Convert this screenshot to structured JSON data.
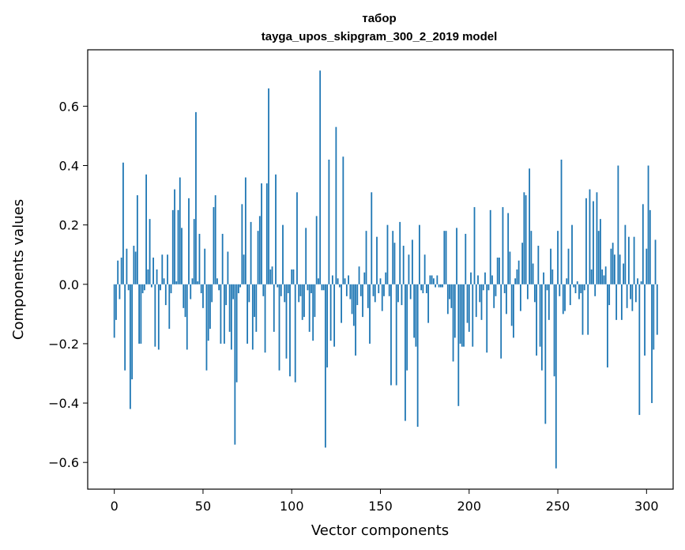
{
  "chart_data": {
    "type": "bar",
    "title_line1": "табор",
    "title_line2": "tayga_upos_skipgram_300_2_2019 model",
    "xlabel": "Vector components",
    "ylabel": "Components values",
    "xlim": [
      -15,
      315
    ],
    "ylim": [
      -0.69,
      0.79
    ],
    "xticks": [
      0,
      50,
      100,
      150,
      200,
      250,
      300
    ],
    "yticks": [
      -0.6,
      -0.4,
      -0.2,
      0.0,
      0.2,
      0.4,
      0.6
    ],
    "ytick_labels": [
      "−0.6",
      "−0.4",
      "−0.2",
      "0.0",
      "0.2",
      "0.4",
      "0.6"
    ],
    "bar_color": "#1f77b4",
    "values": [
      -0.18,
      -0.12,
      0.08,
      -0.05,
      0.09,
      0.41,
      -0.29,
      0.12,
      -0.02,
      -0.42,
      -0.32,
      0.13,
      0.11,
      0.3,
      -0.2,
      -0.2,
      -0.03,
      -0.02,
      0.37,
      0.05,
      0.22,
      -0.01,
      0.09,
      -0.21,
      0.05,
      -0.22,
      -0.02,
      0.1,
      0.02,
      -0.07,
      0.1,
      -0.15,
      -0.03,
      0.25,
      0.32,
      0.01,
      0.25,
      0.36,
      0.19,
      -0.08,
      -0.11,
      -0.22,
      0.29,
      -0.05,
      0.02,
      0.22,
      0.58,
      0.01,
      0.17,
      -0.03,
      -0.08,
      0.12,
      -0.29,
      -0.19,
      -0.15,
      -0.06,
      0.26,
      0.3,
      0.02,
      -0.02,
      -0.2,
      0.17,
      -0.2,
      -0.07,
      0.11,
      -0.16,
      -0.22,
      -0.05,
      -0.54,
      -0.33,
      -0.03,
      -0.01,
      0.27,
      0.1,
      0.36,
      -0.2,
      -0.06,
      0.21,
      -0.22,
      -0.11,
      -0.16,
      0.18,
      0.23,
      0.34,
      -0.04,
      -0.23,
      0.34,
      0.66,
      0.05,
      0.06,
      -0.16,
      0.37,
      -0.01,
      -0.29,
      -0.04,
      0.2,
      -0.06,
      -0.25,
      -0.03,
      -0.31,
      0.05,
      0.05,
      -0.33,
      0.31,
      -0.06,
      -0.04,
      -0.12,
      -0.11,
      0.19,
      -0.02,
      -0.16,
      -0.03,
      -0.19,
      -0.11,
      0.23,
      0.02,
      0.72,
      -0.02,
      -0.02,
      -0.55,
      -0.28,
      0.42,
      -0.19,
      0.03,
      -0.21,
      0.53,
      0.02,
      -0.01,
      -0.13,
      0.43,
      0.02,
      -0.04,
      0.03,
      -0.05,
      -0.1,
      -0.14,
      -0.24,
      -0.07,
      0.06,
      -0.04,
      -0.11,
      0.04,
      0.18,
      -0.08,
      -0.2,
      0.31,
      -0.04,
      -0.06,
      0.16,
      -0.03,
      0.02,
      -0.09,
      -0.04,
      0.04,
      0.2,
      -0.04,
      -0.34,
      0.18,
      0.14,
      -0.34,
      -0.06,
      0.21,
      -0.07,
      0.13,
      -0.46,
      -0.29,
      0.1,
      -0.05,
      0.15,
      -0.18,
      -0.21,
      -0.48,
      0.2,
      -0.02,
      -0.03,
      0.1,
      -0.03,
      -0.13,
      0.03,
      0.03,
      0.02,
      -0.01,
      0.03,
      -0.01,
      -0.01,
      -0.01,
      0.18,
      0.18,
      -0.1,
      -0.05,
      -0.08,
      -0.26,
      -0.18,
      0.19,
      -0.41,
      -0.2,
      -0.21,
      -0.21,
      0.17,
      -0.13,
      -0.16,
      0.04,
      -0.21,
      0.26,
      -0.11,
      0.03,
      -0.06,
      -0.12,
      -0.02,
      0.04,
      -0.23,
      -0.02,
      0.25,
      0.03,
      -0.08,
      -0.04,
      0.09,
      0.09,
      -0.25,
      0.26,
      -0.03,
      -0.1,
      0.24,
      0.11,
      -0.14,
      -0.18,
      0.02,
      0.05,
      0.08,
      -0.09,
      0.14,
      0.31,
      0.3,
      -0.05,
      0.39,
      0.18,
      0.07,
      -0.06,
      -0.24,
      0.13,
      -0.21,
      -0.29,
      0.04,
      -0.47,
      -0.02,
      -0.12,
      0.12,
      0.05,
      -0.31,
      -0.62,
      0.18,
      -0.04,
      0.42,
      -0.1,
      -0.09,
      0.02,
      0.12,
      -0.07,
      0.2,
      -0.01,
      -0.03,
      0.01,
      -0.05,
      -0.03,
      -0.17,
      -0.02,
      0.29,
      -0.17,
      0.32,
      0.05,
      0.28,
      -0.04,
      0.31,
      0.18,
      0.22,
      0.05,
      0.03,
      0.06,
      -0.28,
      -0.07,
      0.12,
      0.14,
      0.1,
      -0.12,
      0.4,
      0.1,
      -0.12,
      0.07,
      0.2,
      -0.08,
      0.16,
      -0.05,
      -0.09,
      0.16,
      -0.06,
      0.02,
      -0.44,
      0.01,
      0.27,
      -0.24,
      0.12,
      0.4,
      0.25,
      -0.4,
      -0.22,
      0.15,
      -0.17
    ]
  }
}
